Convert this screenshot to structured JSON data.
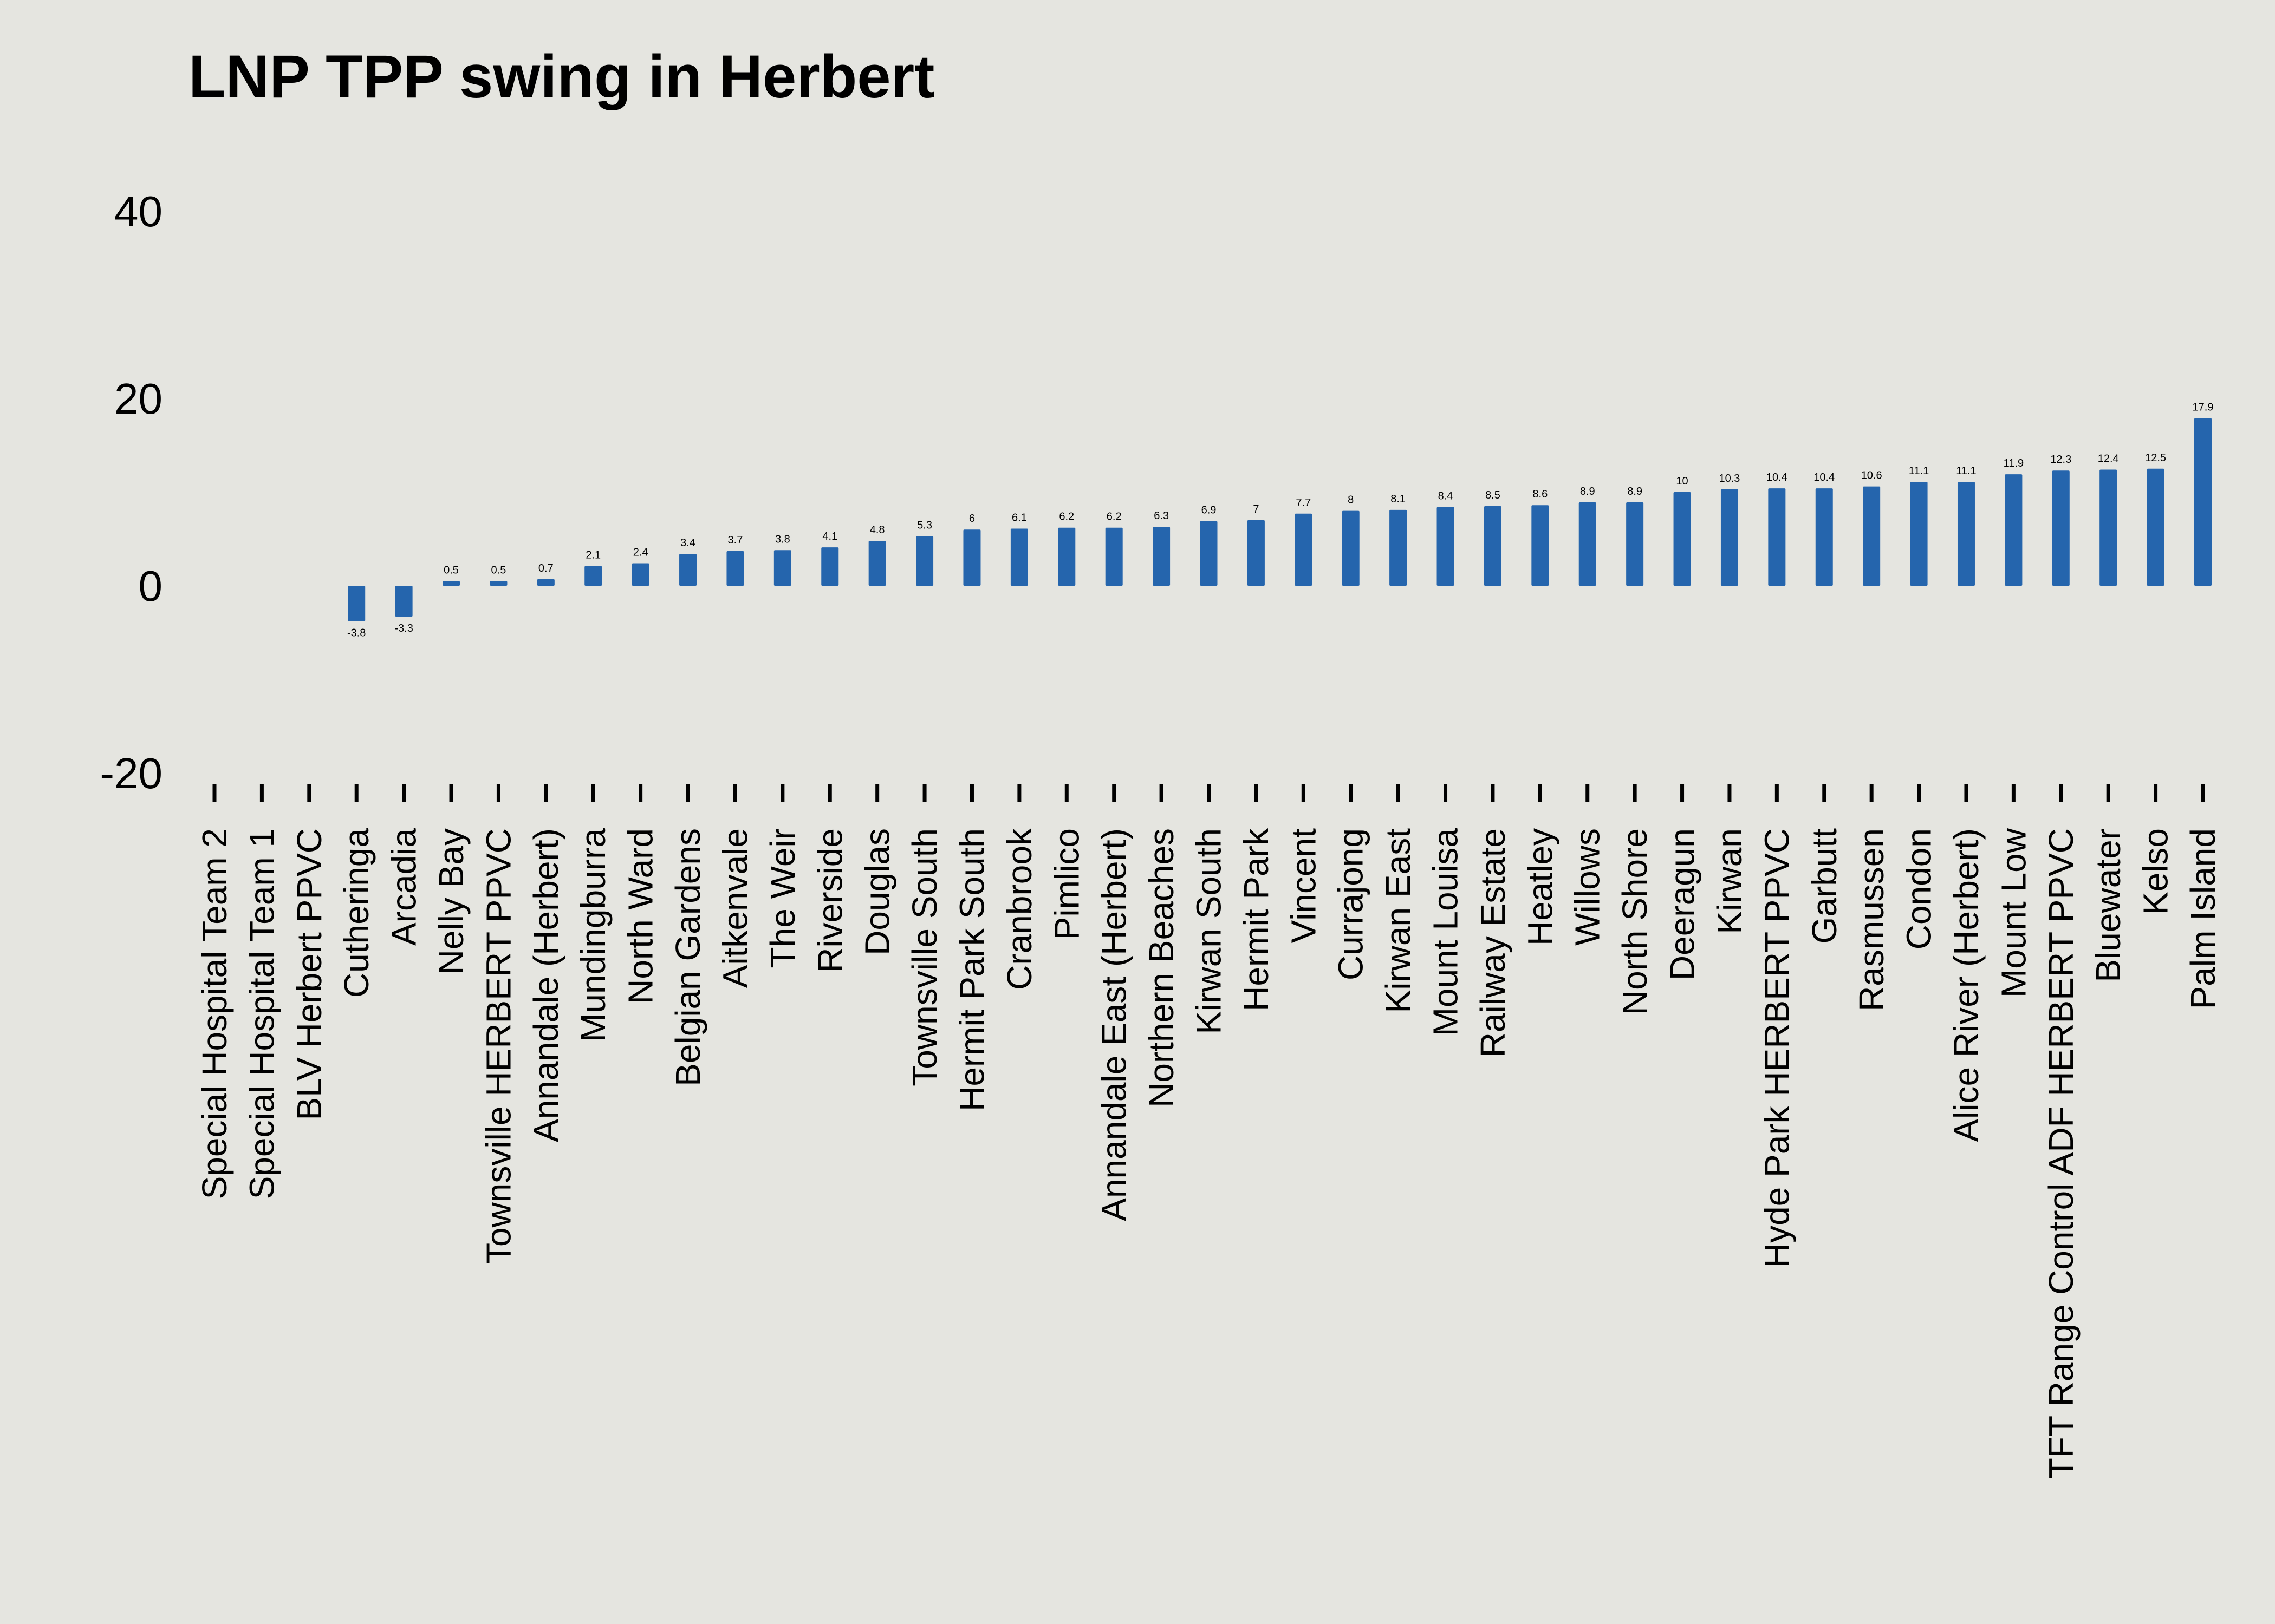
{
  "chart_data": {
    "type": "bar",
    "title": "LNP TPP swing in Herbert",
    "xlabel": "",
    "ylabel": "",
    "ylim": [
      -20,
      40
    ],
    "yticks": [
      40,
      20,
      0,
      -20
    ],
    "grid": false,
    "legend": "none",
    "bar_color": "#2565ad",
    "background_color": "#e5e5e0",
    "categories": [
      "Special Hospital Team 2",
      "Special Hospital Team 1",
      "BLV Herbert PPVC",
      "Cutheringa",
      "Arcadia",
      "Nelly Bay",
      "Townsville HERBERT PPVC",
      "Annandale (Herbert)",
      "Mundingburra",
      "North Ward",
      "Belgian Gardens",
      "Aitkenvale",
      "The Weir",
      "Riverside",
      "Douglas",
      "Townsville South",
      "Hermit Park South",
      "Cranbrook",
      "Pimlico",
      "Annandale East (Herbert)",
      "Northern Beaches",
      "Kirwan South",
      "Hermit Park",
      "Vincent",
      "Currajong",
      "Kirwan East",
      "Mount Louisa",
      "Railway Estate",
      "Heatley",
      "Willows",
      "North Shore",
      "Deeragun",
      "Kirwan",
      "Hyde Park HERBERT PPVC",
      "Garbutt",
      "Rasmussen",
      "Condon",
      "Alice River (Herbert)",
      "Mount Low",
      "TFT Range Control ADF HERBERT PPVC",
      "Bluewater",
      "Kelso",
      "Palm Island"
    ],
    "values": [
      null,
      null,
      null,
      -3.8,
      -3.3,
      0.5,
      0.5,
      0.7,
      2.1,
      2.4,
      3.4,
      3.7,
      3.8,
      4.1,
      4.8,
      5.3,
      6,
      6.1,
      6.2,
      6.2,
      6.3,
      6.9,
      7,
      7.7,
      8,
      8.1,
      8.4,
      8.5,
      8.6,
      8.9,
      8.9,
      10,
      10.3,
      10.4,
      10.4,
      10.6,
      11.1,
      11.1,
      11.9,
      12.3,
      12.4,
      12.5,
      17.9
    ],
    "data_labels": [
      "",
      "",
      "",
      "-3.8",
      "-3.3",
      "0.5",
      "0.5",
      "0.7",
      "2.1",
      "2.4",
      "3.4",
      "3.7",
      "3.8",
      "4.1",
      "4.8",
      "5.3",
      "6",
      "6.1",
      "6.2",
      "6.2",
      "6.3",
      "6.9",
      "7",
      "7.7",
      "8",
      "8.1",
      "8.4",
      "8.5",
      "8.6",
      "8.9",
      "8.9",
      "10",
      "10.3",
      "10.4",
      "10.4",
      "10.6",
      "11.1",
      "11.1",
      "11.9",
      "12.3",
      "12.4",
      "12.5",
      "17.9"
    ]
  }
}
